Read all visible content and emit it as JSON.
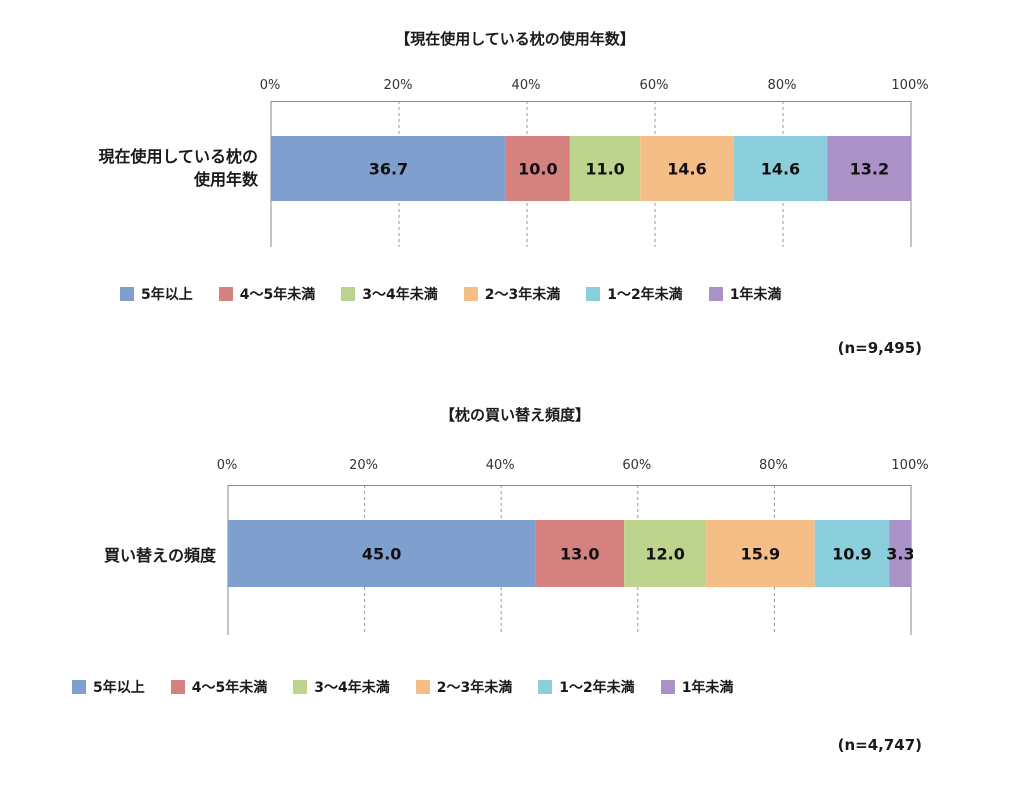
{
  "colors": [
    "#7f9fcf",
    "#d4817f",
    "#bcd48e",
    "#f6be87",
    "#8ccfdc",
    "#ab92c6"
  ],
  "legend": [
    "5年以上",
    "4〜5年未満",
    "3〜4年未満",
    "2〜3年未満",
    "1〜2年未満",
    "1年未満"
  ],
  "chart_data": [
    {
      "type": "bar",
      "orientation": "horizontal",
      "stacked": true,
      "title": "【現在使用している枕の使用年数】",
      "category_label_lines": [
        "現在使用している枕の",
        "使用年数"
      ],
      "categories": [
        "現在使用している枕の使用年数"
      ],
      "series": [
        {
          "name": "5年以上",
          "values": [
            36.7
          ]
        },
        {
          "name": "4〜5年未満",
          "values": [
            10.0
          ]
        },
        {
          "name": "3〜4年未満",
          "values": [
            11.0
          ]
        },
        {
          "name": "2〜3年未満",
          "values": [
            14.6
          ]
        },
        {
          "name": "1〜2年未満",
          "values": [
            14.6
          ]
        },
        {
          "name": "1年未満",
          "values": [
            13.2
          ]
        }
      ],
      "xticks": [
        "0%",
        "20%",
        "40%",
        "60%",
        "80%",
        "100%"
      ],
      "xlim": [
        0,
        100
      ],
      "grid": true,
      "legend_position": "bottom",
      "note": "(n=9,495)"
    },
    {
      "type": "bar",
      "orientation": "horizontal",
      "stacked": true,
      "title": "【枕の買い替え頻度】",
      "category_label_lines": [
        "買い替えの頻度"
      ],
      "categories": [
        "買い替えの頻度"
      ],
      "series": [
        {
          "name": "5年以上",
          "values": [
            45.0
          ]
        },
        {
          "name": "4〜5年未満",
          "values": [
            13.0
          ]
        },
        {
          "name": "3〜4年未満",
          "values": [
            12.0
          ]
        },
        {
          "name": "2〜3年未満",
          "values": [
            15.9
          ]
        },
        {
          "name": "1〜2年未満",
          "values": [
            10.9
          ]
        },
        {
          "name": "1年未満",
          "values": [
            3.3
          ]
        }
      ],
      "xticks": [
        "0%",
        "20%",
        "40%",
        "60%",
        "80%",
        "100%"
      ],
      "xlim": [
        0,
        100
      ],
      "grid": true,
      "legend_position": "bottom",
      "note": "(n=4,747)"
    }
  ]
}
